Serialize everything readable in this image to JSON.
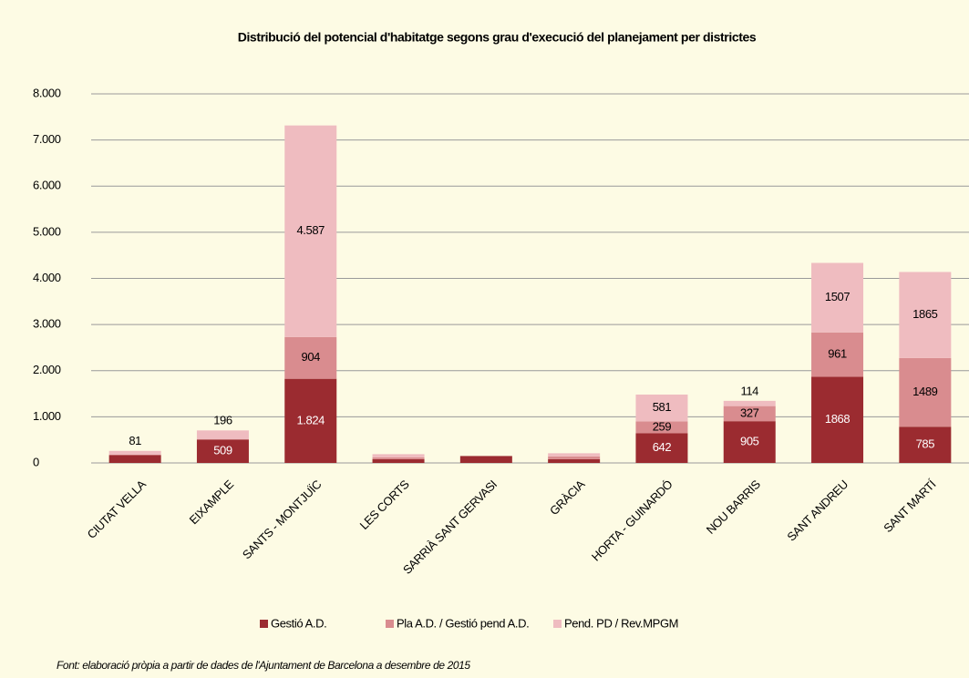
{
  "chart_data": {
    "type": "stacked_bar",
    "title": "Distribució del potencial d'habitatge segons grau d'execució del planejament per districtes",
    "categories": [
      "CIUTAT VELLA",
      "EIXAMPLE",
      "SANTS - MONTJUÏC",
      "LES CORTS",
      "SARRIÀ SANT GERVASI",
      "GRÀCIA",
      "HORTA - GUINARDÓ",
      "NOU BARRIS",
      "SANT ANDREU",
      "SANT MARTÍ"
    ],
    "series": [
      {
        "name": "Gestió A.D.",
        "color": "#9b2b30",
        "values": [
          170,
          509,
          1824,
          80,
          150,
          80,
          642,
          905,
          1868,
          785
        ],
        "value_labels": [
          null,
          "509",
          "1.824",
          null,
          null,
          null,
          "642",
          "905",
          "1868",
          "785"
        ]
      },
      {
        "name": "Pla A.D. / Gestió pend A.D.",
        "color": "#d98c8f",
        "values": [
          10,
          0,
          904,
          40,
          0,
          60,
          259,
          327,
          961,
          1489
        ],
        "value_labels": [
          null,
          null,
          "904",
          null,
          null,
          null,
          "259",
          "327",
          "961",
          "1489"
        ]
      },
      {
        "name": "Pend. PD / Rev.MPGM",
        "color": "#efbcc0",
        "values": [
          81,
          196,
          4587,
          70,
          0,
          70,
          581,
          114,
          1507,
          1865
        ],
        "value_labels": [
          "81",
          "196",
          "4.587",
          null,
          null,
          null,
          "581",
          "114",
          "1507",
          "1865"
        ]
      }
    ],
    "ylim": [
      0,
      8000
    ],
    "yticks": [
      0,
      {
        "value": 1000,
        "label": "1.000"
      },
      {
        "value": 2000,
        "label": "2.000"
      },
      {
        "value": 3000,
        "label": "3.000"
      },
      {
        "value": 4000,
        "label": "4.000"
      },
      {
        "value": 5000,
        "label": "5.000"
      },
      {
        "value": 6000,
        "label": "6.000"
      },
      {
        "value": 7000,
        "label": "7.000"
      },
      {
        "value": 8000,
        "label": "8.000"
      }
    ],
    "grid": true,
    "legend": "bottom",
    "note": "Font: elaboració pròpia a partir de dades de l'Ajuntament de Barcelona a desembre de 2015"
  }
}
